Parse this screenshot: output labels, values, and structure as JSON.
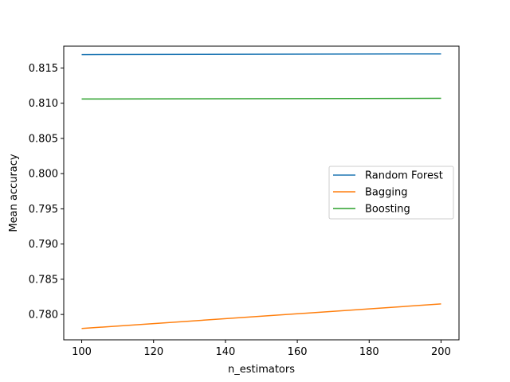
{
  "chart_data": {
    "type": "line",
    "title": "",
    "xlabel": "n_estimators",
    "ylabel": "Mean accuracy",
    "x": [
      100,
      200
    ],
    "xlim": [
      95,
      205
    ],
    "ylim": [
      0.7764,
      0.8181
    ],
    "xticks": [
      100,
      120,
      140,
      160,
      180,
      200
    ],
    "yticks": [
      "0.780",
      "0.785",
      "0.790",
      "0.795",
      "0.800",
      "0.805",
      "0.810",
      "0.815"
    ],
    "grid": false,
    "legend_position": "center-right",
    "series": [
      {
        "name": "Random Forest",
        "color": "#1f77b4",
        "values": [
          0.8169,
          0.817
        ]
      },
      {
        "name": "Bagging",
        "color": "#ff7f0e",
        "values": [
          0.778,
          0.7815
        ]
      },
      {
        "name": "Boosting",
        "color": "#2ca02c",
        "values": [
          0.8106,
          0.8107
        ]
      }
    ]
  }
}
